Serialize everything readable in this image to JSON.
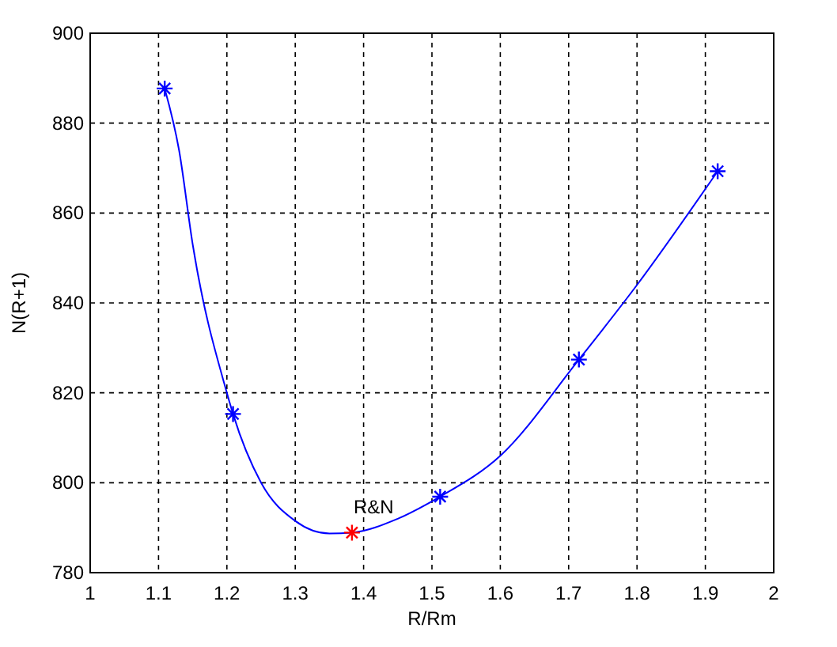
{
  "chart_data": {
    "type": "line",
    "xlabel": "R/Rm",
    "ylabel": "N(R+1)",
    "xlim": [
      1,
      2
    ],
    "ylim": [
      780,
      900
    ],
    "xticks": [
      1,
      1.1,
      1.2,
      1.3,
      1.4,
      1.5,
      1.6,
      1.7,
      1.8,
      1.9,
      2
    ],
    "yticks": [
      780,
      800,
      820,
      840,
      860,
      880,
      900
    ],
    "grid": true,
    "series": [
      {
        "color": "#0000ff",
        "marker": "none",
        "x": [
          1.109,
          1.13,
          1.15,
          1.2,
          1.209,
          1.25,
          1.3,
          1.35,
          1.383,
          1.45,
          1.512,
          1.6,
          1.715,
          1.8,
          1.918
        ],
        "values": [
          887.7,
          874,
          853,
          820,
          815.3,
          800,
          791.5,
          788.7,
          788.9,
          792,
          796.9,
          806,
          827.4,
          844,
          869.3
        ]
      },
      {
        "type": "scatter",
        "color": "#0000ff",
        "marker": "cross",
        "x": [
          1.109,
          1.209,
          1.512,
          1.715,
          1.918
        ],
        "values": [
          887.7,
          815.3,
          796.9,
          827.4,
          869.3
        ]
      },
      {
        "type": "scatter",
        "color": "#ff0000",
        "marker": "cross",
        "x": [
          1.383
        ],
        "values": [
          788.9
        ]
      }
    ],
    "annotations": [
      {
        "text": "R&N",
        "x": 1.383,
        "y": 788.9
      }
    ]
  }
}
